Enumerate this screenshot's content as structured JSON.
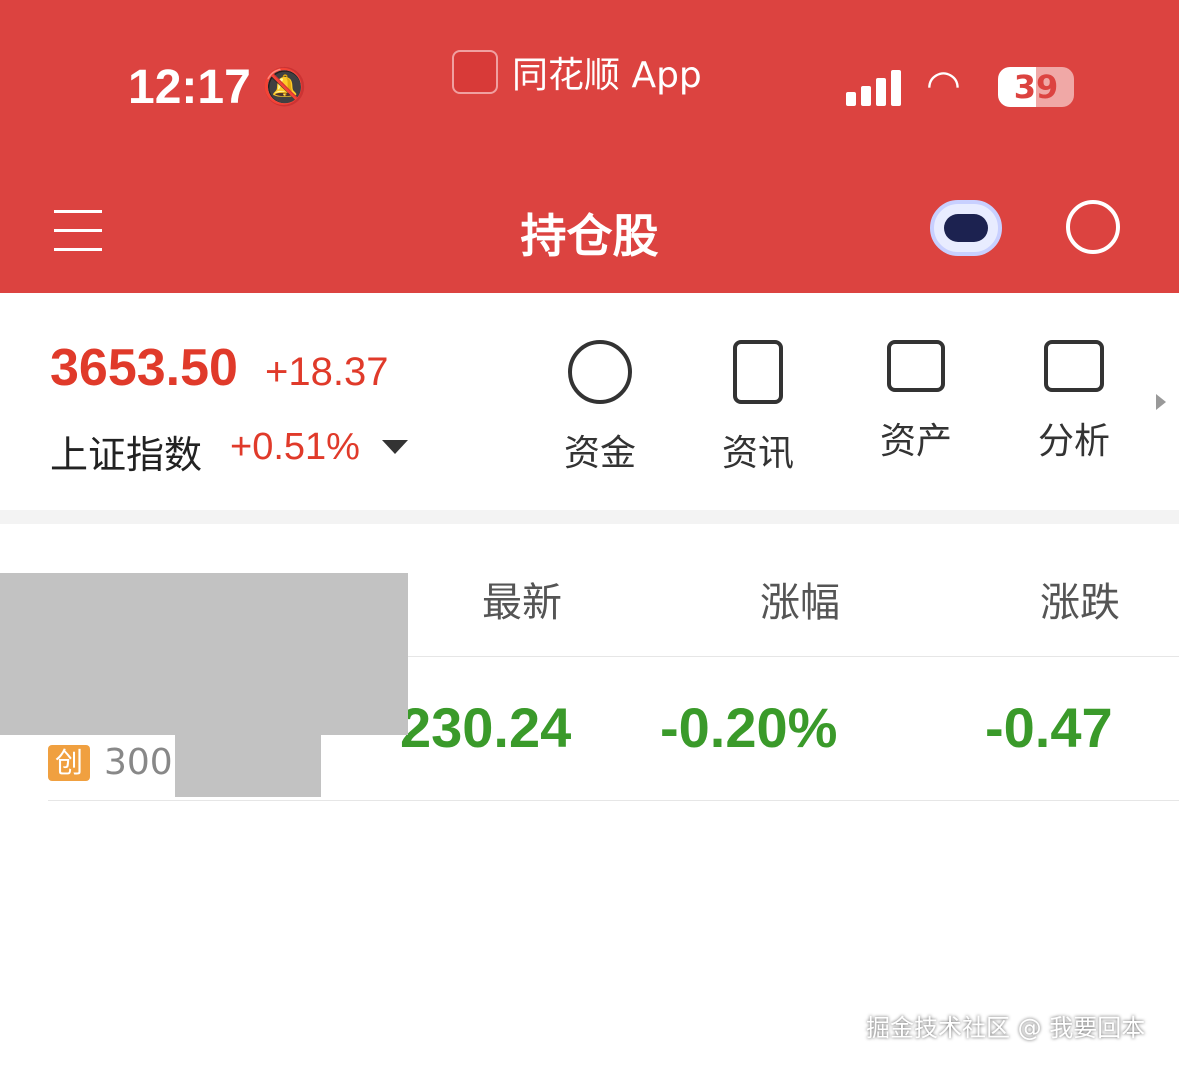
{
  "status": {
    "time": "12:17",
    "app_label": "同花顺 App",
    "battery": "39"
  },
  "header": {
    "title": "持仓股"
  },
  "index": {
    "value": "3653.50",
    "change": "+18.37",
    "name": "上证指数",
    "percent": "+0.51%"
  },
  "tools": [
    {
      "label": "资金"
    },
    {
      "label": "资讯"
    },
    {
      "label": "资产"
    },
    {
      "label": "分析"
    }
  ],
  "table": {
    "headers": [
      "最新",
      "涨幅",
      "涨跌"
    ],
    "rows": [
      {
        "badge": "创",
        "code": "300",
        "latest": "230.24",
        "pct": "-0.20%",
        "chg": "-0.47"
      }
    ]
  },
  "colors": {
    "brand": "#dc4340",
    "up": "#e03a2a",
    "down": "#3a9a2a"
  },
  "watermark": "掘金技术社区 @ 我要回本"
}
